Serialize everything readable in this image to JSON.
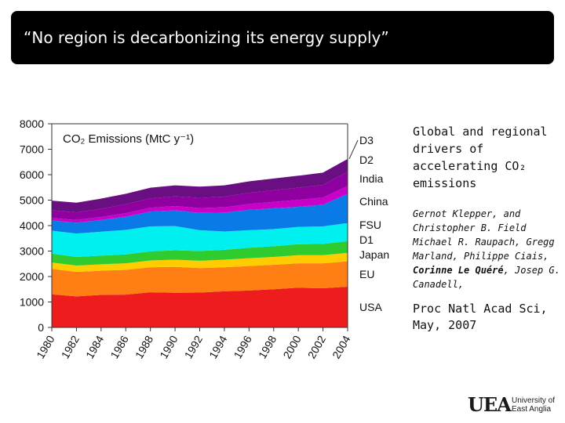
{
  "slide_title": "“No region is decarbonizing its energy supply”",
  "side_title": [
    "Global and regional",
    "drivers of",
    "accelerating CO₂",
    "emissions"
  ],
  "authors": {
    "line1": "Gernot Klepper, and Christopher B. Field Michael R. Raupach, Gregg Marland, Philippe Ciais, ",
    "bold": "Corinne Le Quéré",
    "line2": ", Josep G. Canadell,"
  },
  "journal": [
    "Proc Natl Acad Sci,",
    "May, 2007"
  ],
  "logo": {
    "mark": "UEA",
    "line1": "University of",
    "line2": "East Anglia"
  },
  "chart_data": {
    "type": "area",
    "title": "CO₂ Emissions (MtC y⁻¹)",
    "x": [
      1980,
      1982,
      1984,
      1986,
      1988,
      1990,
      1992,
      1994,
      1996,
      1998,
      2000,
      2002,
      2004
    ],
    "xlim": [
      1980,
      2004
    ],
    "ylim": [
      0,
      8000
    ],
    "yticks": [
      0,
      1000,
      2000,
      3000,
      4000,
      5000,
      6000,
      7000,
      8000
    ],
    "stacked": true,
    "series_order_bottom_to_top": [
      "USA",
      "EU",
      "Japan",
      "D1",
      "FSU",
      "China",
      "India",
      "D2",
      "D3"
    ],
    "series": [
      {
        "name": "USA",
        "color": "#ee1c1c",
        "values": [
          1300,
          1220,
          1280,
          1290,
          1380,
          1360,
          1370,
          1420,
          1450,
          1500,
          1560,
          1540,
          1600
        ]
      },
      {
        "name": "EU",
        "color": "#ff7f14",
        "values": [
          1000,
          960,
          950,
          970,
          980,
          1020,
          960,
          940,
          960,
          960,
          960,
          980,
          1000
        ]
      },
      {
        "name": "Japan",
        "color": "#ffcc00",
        "values": [
          250,
          250,
          250,
          260,
          270,
          280,
          290,
          300,
          310,
          310,
          320,
          320,
          330
        ]
      },
      {
        "name": "D1",
        "color": "#2ecc2e",
        "values": [
          350,
          340,
          340,
          350,
          360,
          370,
          380,
          390,
          410,
          420,
          430,
          440,
          460
        ]
      },
      {
        "name": "FSU",
        "color": "#00f0f0",
        "values": [
          900,
          920,
          940,
          960,
          980,
          950,
          820,
          720,
          690,
          670,
          680,
          690,
          710
        ]
      },
      {
        "name": "China",
        "color": "#0a7be6",
        "values": [
          400,
          420,
          460,
          520,
          580,
          620,
          680,
          740,
          800,
          820,
          790,
          850,
          1150
        ]
      },
      {
        "name": "India",
        "color": "#c800c8",
        "values": [
          100,
          110,
          120,
          140,
          150,
          170,
          190,
          210,
          230,
          250,
          270,
          280,
          310
        ]
      },
      {
        "name": "D2",
        "color": "#9000a0",
        "values": [
          300,
          300,
          320,
          350,
          370,
          380,
          400,
          420,
          440,
          460,
          480,
          500,
          560
        ]
      },
      {
        "name": "D3",
        "color": "#6a0f82",
        "values": [
          380,
          380,
          400,
          410,
          420,
          430,
          440,
          440,
          450,
          460,
          470,
          480,
          500
        ]
      }
    ],
    "annotation": {
      "text": "D3",
      "target_year": 2004
    }
  }
}
